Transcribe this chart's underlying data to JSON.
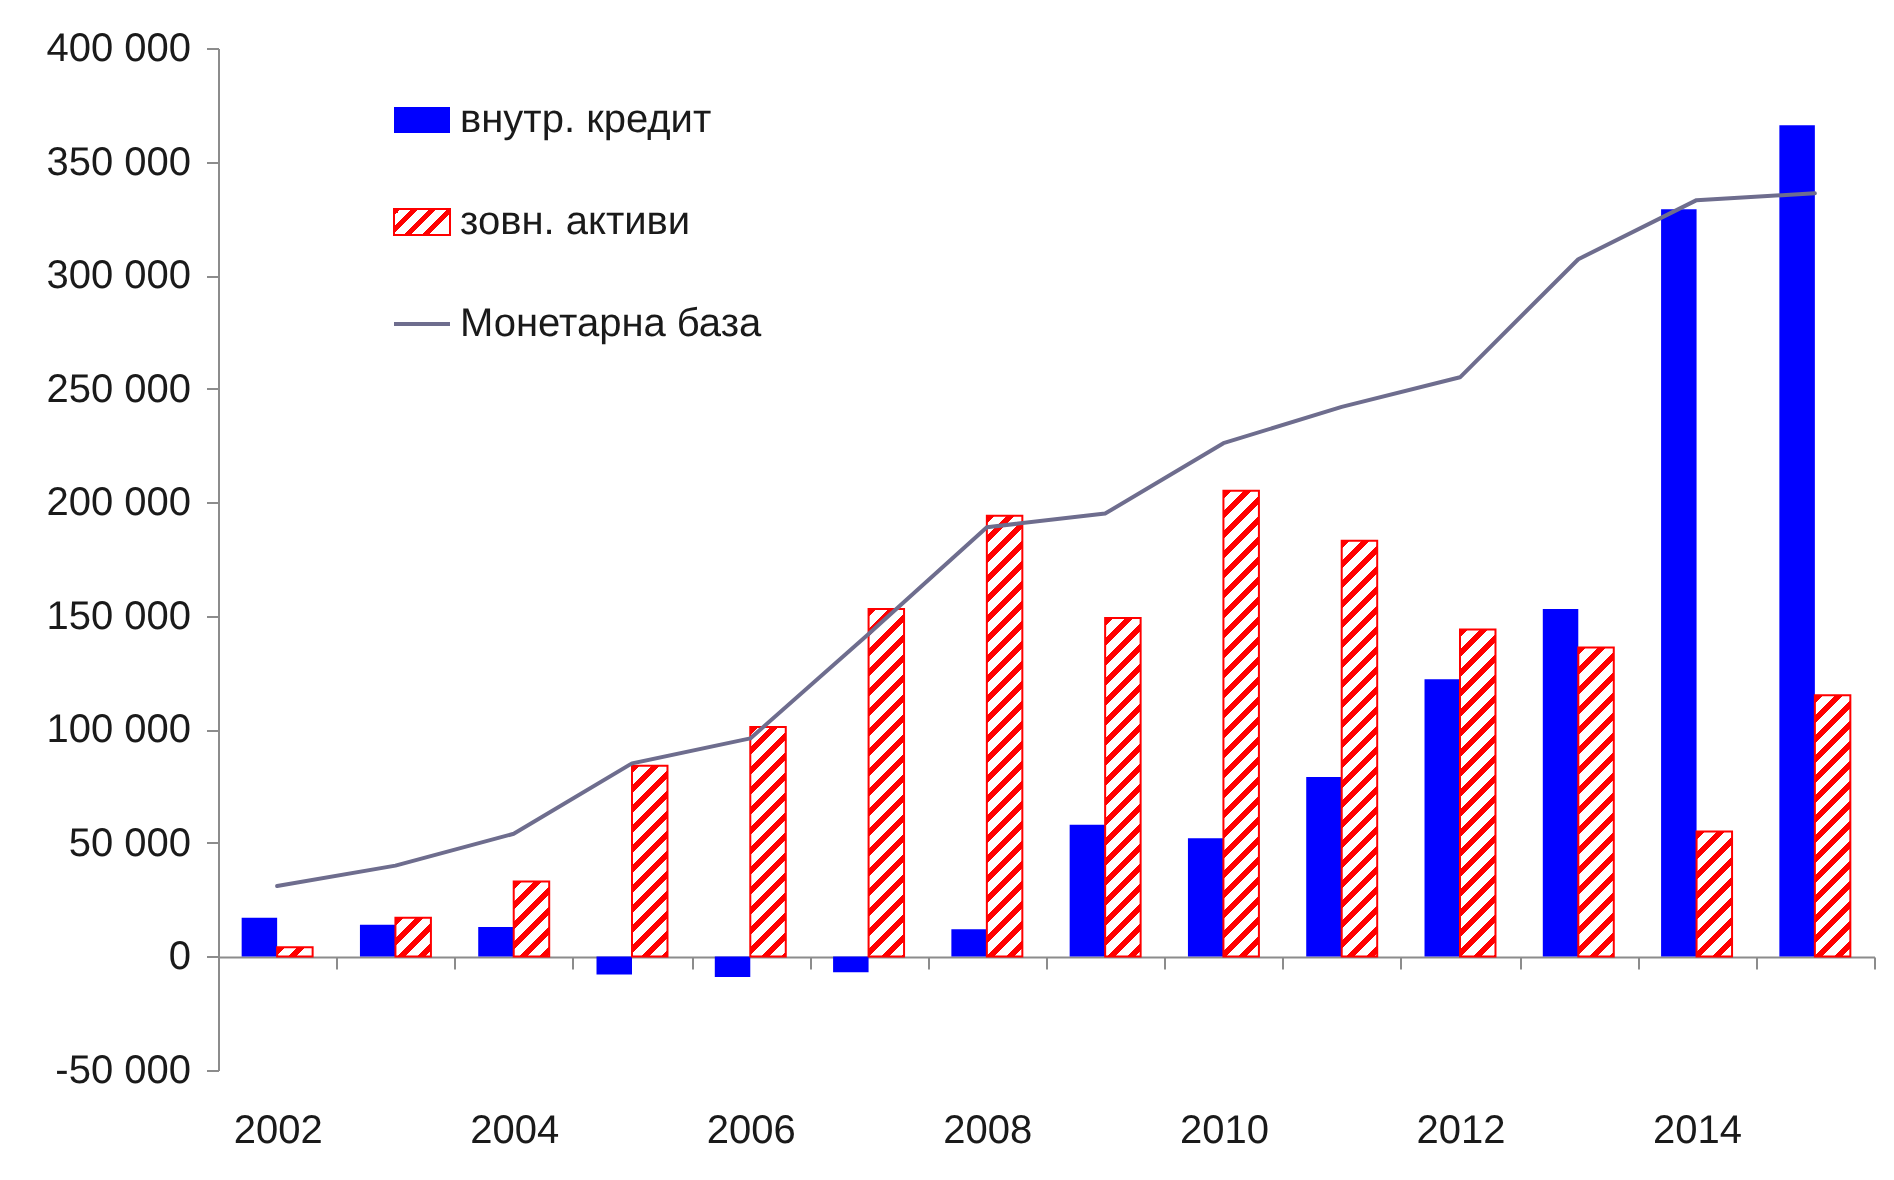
{
  "chart_data": {
    "type": "bar",
    "categories": [
      "2002",
      null,
      "2004",
      null,
      "2006",
      null,
      "2008",
      null,
      "2010",
      null,
      "2012",
      null,
      "2014",
      null
    ],
    "series": [
      {
        "name": "внутр. кредит",
        "color": "#0000ff",
        "values": [
          17000,
          14000,
          13000,
          -8000,
          -9000,
          -7000,
          12000,
          58000,
          52000,
          79000,
          122000,
          153000,
          329000,
          366000
        ]
      },
      {
        "name": "зовн. активи",
        "color": "#ff0000",
        "values": [
          4000,
          17000,
          33000,
          84000,
          101000,
          153000,
          194000,
          149000,
          205000,
          183000,
          144000,
          136000,
          55000,
          115000
        ]
      },
      {
        "name": "Монетарна база",
        "type": "line",
        "color": "#6e6d8e",
        "values": [
          31000,
          40000,
          54000,
          85000,
          96000,
          142000,
          189000,
          195000,
          226000,
          242000,
          255000,
          307000,
          333000,
          336000
        ]
      }
    ],
    "ylim": [
      -50000,
      400000
    ],
    "yticks": [
      {
        "value": -50000,
        "label": "-50 000"
      },
      0,
      {
        "value": 50000,
        "label": "50 000"
      },
      {
        "value": 100000,
        "label": "100 000"
      },
      {
        "value": 150000,
        "label": "150 000"
      },
      {
        "value": 200000,
        "label": "200 000"
      },
      {
        "value": 250000,
        "label": "250 000"
      },
      {
        "value": 300000,
        "label": "300 000"
      },
      {
        "value": 350000,
        "label": "350 000"
      },
      {
        "value": 400000,
        "label": "400 000"
      }
    ],
    "legend": "top left"
  }
}
